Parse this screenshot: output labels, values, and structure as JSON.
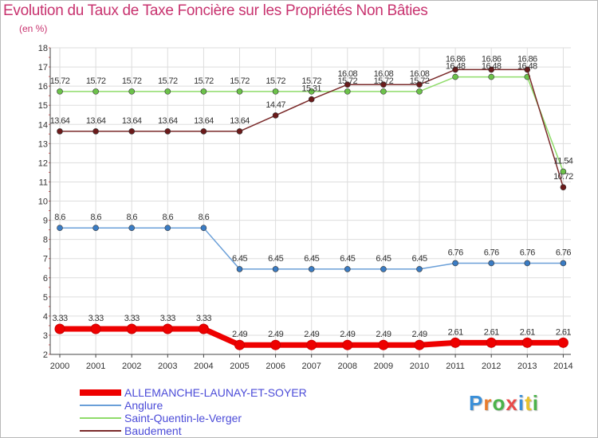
{
  "title": "Evolution du Taux de Taxe Foncière sur les Propriétés Non Bâties",
  "unit_label": "(en %)",
  "logo": {
    "text": "Proxiti",
    "colors": [
      "#3a8fd8",
      "#e87b2b",
      "#4bb34b",
      "#e84b4b",
      "#3a8fd8",
      "#e8c22b",
      "#4bb34b"
    ]
  },
  "chart_data": {
    "type": "line",
    "title": "Evolution du Taux de Taxe Foncière sur les Propriétés Non Bâties",
    "ylabel": "(en %)",
    "xlabel": "",
    "ylim": [
      2,
      18
    ],
    "yticks": [
      "2",
      "3",
      "4",
      "5",
      "6",
      "7",
      "8",
      "9",
      "10",
      "11",
      "12",
      "13",
      "14",
      "15",
      "16",
      "17",
      "18"
    ],
    "categories": [
      "2000",
      "2001",
      "2002",
      "2003",
      "2004",
      "2005",
      "2006",
      "2007",
      "2008",
      "2009",
      "2010",
      "2011",
      "2012",
      "2013",
      "2014"
    ],
    "series": [
      {
        "name": "ALLEMANCHE-LAUNAY-ET-SOYER",
        "color": "#ee0000",
        "marker_color": "#ee0000",
        "thick": true,
        "values": [
          3.33,
          3.33,
          3.33,
          3.33,
          3.33,
          2.49,
          2.49,
          2.49,
          2.49,
          2.49,
          2.49,
          2.61,
          2.61,
          2.61,
          2.61
        ],
        "labels": [
          "3.33",
          "3.33",
          "3.33",
          "3.33",
          "3.33",
          "2.49",
          "2.49",
          "2.49",
          "2.49",
          "2.49",
          "2.49",
          "2.61",
          "2.61",
          "2.61",
          "2.61"
        ]
      },
      {
        "name": "Anglure",
        "color": "#6a9fd8",
        "marker_color": "#3a7cc4",
        "thick": false,
        "values": [
          8.6,
          8.6,
          8.6,
          8.6,
          8.6,
          6.45,
          6.45,
          6.45,
          6.45,
          6.45,
          6.45,
          6.76,
          6.76,
          6.76,
          6.76
        ],
        "labels": [
          "8.6",
          "8.6",
          "8.6",
          "8.6",
          "8.6",
          "6.45",
          "6.45",
          "6.45",
          "6.45",
          "6.45",
          "6.45",
          "6.76",
          "6.76",
          "6.76",
          "6.76"
        ]
      },
      {
        "name": "Saint-Quentin-le-Verger",
        "color": "#8fdc6a",
        "marker_color": "#6cc24a",
        "thick": false,
        "values": [
          15.72,
          15.72,
          15.72,
          15.72,
          15.72,
          15.72,
          15.72,
          15.72,
          15.72,
          15.72,
          15.72,
          16.48,
          16.48,
          16.48,
          11.54
        ],
        "labels": [
          "15.72",
          "15.72",
          "15.72",
          "15.72",
          "15.72",
          "15.72",
          "15.72",
          "15.72",
          "15.72",
          "15.72",
          "15.72",
          "16.48",
          "16.48",
          "16.48",
          "11.54"
        ]
      },
      {
        "name": "Baudement",
        "color": "#7a2a2a",
        "marker_color": "#6b1a1a",
        "thick": false,
        "values": [
          13.64,
          13.64,
          13.64,
          13.64,
          13.64,
          13.64,
          14.47,
          15.31,
          16.08,
          16.08,
          16.08,
          16.86,
          16.86,
          16.86,
          10.72
        ],
        "labels": [
          "13.64",
          "13.64",
          "13.64",
          "13.64",
          "13.64",
          "13.64",
          "14.47",
          "15.31",
          "16.08",
          "16.08",
          "16.08",
          "16.86",
          "16.86",
          "16.86",
          "10.72"
        ]
      }
    ]
  }
}
